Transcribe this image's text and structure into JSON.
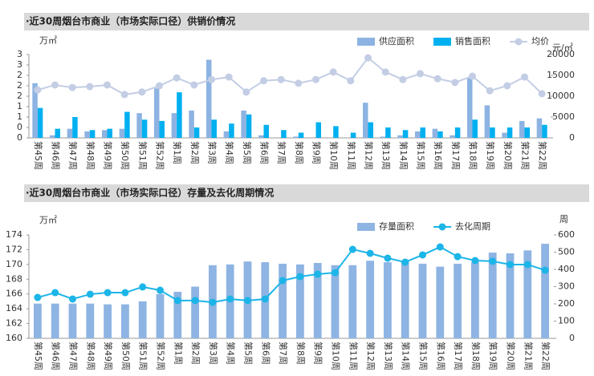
{
  "chart_data": [
    {
      "type": "bar",
      "title": "·近30周烟台市商业（市场实际口径）供销价情况",
      "y_label": "万㎡",
      "y2_label": "元/㎡",
      "categories": [
        "第45周",
        "第46周",
        "第47周",
        "第48周",
        "第49周",
        "第50周",
        "第51周",
        "第52周",
        "第1周",
        "第2周",
        "第3周",
        "第4周",
        "第5周",
        "第6周",
        "第7周",
        "第8周",
        "第9周",
        "第10周",
        "第11周",
        "第12周",
        "第13周",
        "第14周",
        "第15周",
        "第16周",
        "第17周",
        "第18周",
        "第19周",
        "第20周",
        "第21周",
        "第22周"
      ],
      "series": [
        {
          "name": "供应面积",
          "type": "bar",
          "color": "#8db3e2",
          "values": [
            2.1,
            0.1,
            0.35,
            0.25,
            0.3,
            0.35,
            0.95,
            1.9,
            0.95,
            1.05,
            3.0,
            0.25,
            1.05,
            0.1,
            0,
            0.05,
            0,
            0,
            0,
            1.35,
            0.05,
            0.1,
            0.25,
            0.35,
            0.1,
            2.3,
            1.25,
            0.2,
            0.65,
            0.75
          ]
        },
        {
          "name": "销售面积",
          "type": "bar",
          "color": "#00b0f0",
          "values": [
            1.15,
            0.35,
            0.8,
            0.3,
            0.35,
            1.0,
            0.7,
            0.65,
            1.75,
            0.4,
            0.7,
            0.55,
            0.9,
            0.5,
            0.3,
            0.2,
            0.6,
            0.45,
            0.2,
            0.6,
            0.4,
            0.3,
            0.4,
            0.25,
            0.4,
            0.7,
            0.4,
            0.4,
            0.4,
            0.5
          ]
        },
        {
          "name": "均价",
          "type": "line",
          "axis": "y2",
          "color": "#c3cde4",
          "values": [
            11500,
            12700,
            12100,
            12300,
            12700,
            10400,
            11000,
            12500,
            14400,
            12700,
            14000,
            14600,
            11000,
            13700,
            14000,
            13100,
            14000,
            15800,
            13700,
            19200,
            15800,
            14000,
            15400,
            14200,
            13300,
            14800,
            11300,
            12500,
            14600,
            10600
          ]
        }
      ],
      "ylim": [
        0,
        3.2
      ],
      "yticks": [
        {
          "value": 0,
          "label": "0"
        },
        {
          "value": 0.4,
          "label": "0"
        },
        {
          "value": 0.8,
          "label": "1"
        },
        {
          "value": 1.2,
          "label": "1"
        },
        {
          "value": 1.6,
          "label": "2"
        },
        {
          "value": 2.0,
          "label": "2"
        },
        {
          "value": 2.4,
          "label": "2"
        },
        {
          "value": 2.8,
          "label": "3"
        },
        {
          "value": 3.2,
          "label": "3"
        }
      ],
      "y2lim": [
        0,
        20000
      ],
      "y2ticks": [
        0,
        5000,
        10000,
        15000,
        20000
      ],
      "grid": false,
      "legend": "top-right"
    },
    {
      "type": "bar",
      "title": "·近30周烟台市商业（市场实际口径）存量及去化周期情况",
      "y_label": "万㎡",
      "y2_label": "周",
      "categories": [
        "第45周",
        "第46周",
        "第47周",
        "第48周",
        "第49周",
        "第50周",
        "第51周",
        "第52周",
        "第1周",
        "第2周",
        "第3周",
        "第4周",
        "第5周",
        "第6周",
        "第7周",
        "第8周",
        "第9周",
        "第10周",
        "第11周",
        "第12周",
        "第13周",
        "第14周",
        "第15周",
        "第16周",
        "第17周",
        "第18周",
        "第19周",
        "第20周",
        "第21周",
        "第22周"
      ],
      "series": [
        {
          "name": "存量面积",
          "type": "bar",
          "color": "#8eb4e3",
          "values": [
            164.7,
            164.7,
            164.7,
            164.7,
            164.6,
            164.6,
            165.0,
            166.0,
            166.3,
            167.0,
            169.9,
            170.0,
            170.4,
            170.3,
            170.1,
            170.0,
            170.2,
            169.9,
            169.9,
            170.5,
            170.3,
            170.4,
            170.1,
            169.7,
            170.1,
            170.3,
            171.6,
            171.5,
            171.9,
            172.8
          ]
        },
        {
          "name": "去化周期",
          "type": "line",
          "axis": "y2",
          "color": "#1cb5e8",
          "values": [
            237,
            265,
            228,
            256,
            265,
            265,
            298,
            279,
            219,
            219,
            209,
            228,
            219,
            228,
            335,
            358,
            372,
            381,
            516,
            493,
            465,
            442,
            484,
            530,
            474,
            451,
            447,
            428,
            428,
            395
          ]
        }
      ],
      "ylim": [
        160,
        174
      ],
      "yticks": [
        160,
        162,
        164,
        166,
        168,
        170,
        172,
        174
      ],
      "y2lim": [
        0,
        600
      ],
      "y2ticks": [
        0,
        100,
        200,
        300,
        400,
        500,
        600
      ],
      "grid": false,
      "legend": "top-right"
    }
  ]
}
